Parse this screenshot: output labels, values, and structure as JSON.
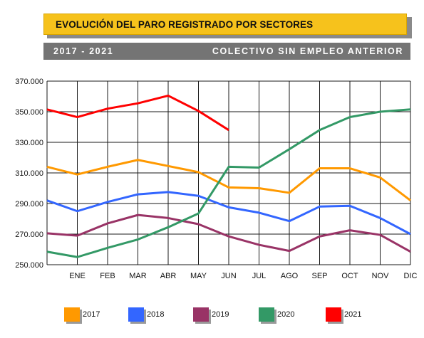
{
  "header": {
    "title": "EVOLUCIÓN DEL PARO REGISTRADO POR SECTORES",
    "period": "2017 - 2021",
    "collective": "COLECTIVO SIN EMPLEO ANTERIOR"
  },
  "chart_data": {
    "type": "line",
    "categories": [
      "",
      "ENE",
      "FEB",
      "MAR",
      "ABR",
      "MAY",
      "JUN",
      "JUL",
      "AGO",
      "SEP",
      "OCT",
      "NOV",
      "DIC"
    ],
    "ylim": [
      250000,
      370000
    ],
    "yticks": [
      250000,
      270000,
      290000,
      310000,
      330000,
      350000,
      370000
    ],
    "ytick_labels": [
      "250.000",
      "270.000",
      "290.000",
      "310.000",
      "330.000",
      "350.000",
      "370.000"
    ],
    "grid": true,
    "legend_position": "bottom",
    "series": [
      {
        "name": "2017",
        "color": "#ff9900",
        "values": [
          314000,
          309000,
          314000,
          318500,
          314500,
          310500,
          300500,
          300000,
          297000,
          313000,
          313000,
          307000,
          292000
        ]
      },
      {
        "name": "2018",
        "color": "#3366ff",
        "values": [
          292000,
          285000,
          291000,
          296000,
          297500,
          295000,
          287500,
          284000,
          278500,
          288000,
          288500,
          280500,
          270000
        ]
      },
      {
        "name": "2019",
        "color": "#993366",
        "values": [
          270500,
          269000,
          277000,
          282500,
          280500,
          276500,
          268500,
          263000,
          259000,
          268500,
          272500,
          269500,
          258500
        ]
      },
      {
        "name": "2020",
        "color": "#339966",
        "values": [
          258500,
          255000,
          261000,
          266500,
          274500,
          283500,
          314000,
          313500,
          325500,
          338000,
          346500,
          350000,
          351500
        ]
      },
      {
        "name": "2021",
        "color": "#ff0000",
        "values": [
          351500,
          346500,
          352000,
          355500,
          360500,
          350500,
          338000,
          null,
          null,
          null,
          null,
          null,
          null
        ]
      }
    ]
  }
}
